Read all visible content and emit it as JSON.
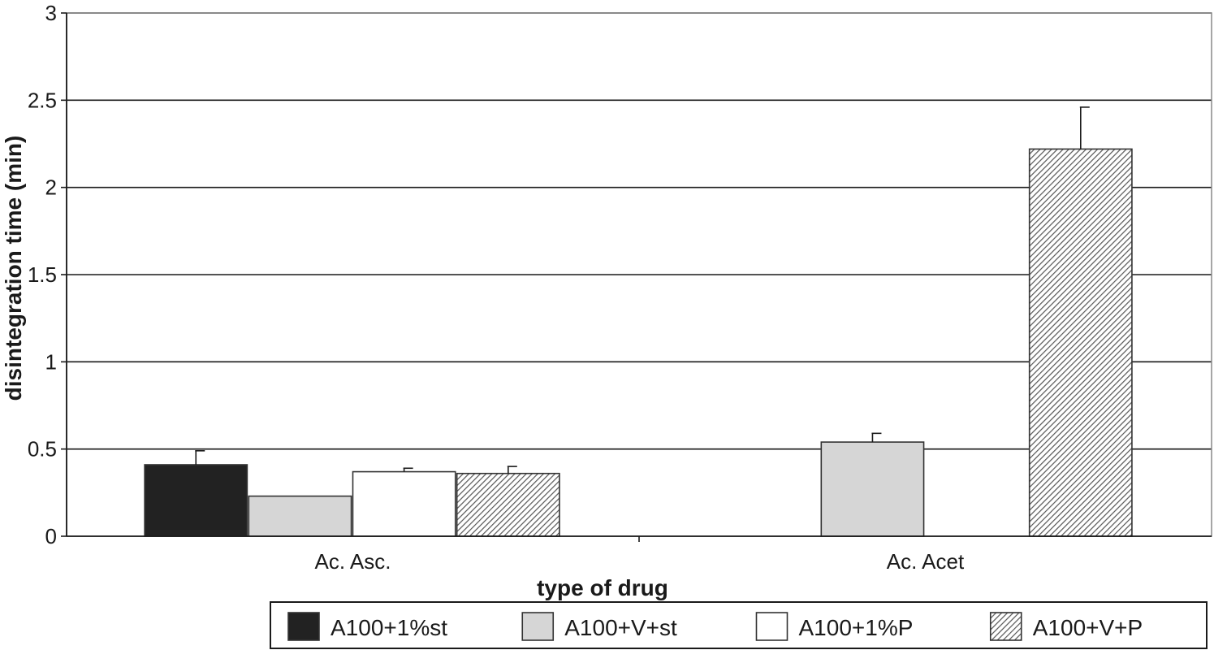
{
  "chart_data": {
    "type": "bar",
    "title": "",
    "xlabel": "type of drug",
    "ylabel": "disintegration time (min)",
    "ylim": [
      0,
      3
    ],
    "yticks": [
      "0",
      "0.5",
      "1",
      "1.5",
      "2",
      "2.5",
      "3"
    ],
    "grid": true,
    "legend_position": "bottom",
    "categories": [
      "Ac. Asc.",
      "Ac. Acet"
    ],
    "series": [
      {
        "name": "A100+1%st",
        "values": [
          0.41,
          null
        ],
        "errors": [
          0.08,
          null
        ],
        "fill": "solid",
        "color": "#222222"
      },
      {
        "name": "A100+V+st",
        "values": [
          0.23,
          0.54
        ],
        "errors": [
          0,
          0.05
        ],
        "fill": "solid",
        "color": "#d6d6d6"
      },
      {
        "name": "A100+1%P",
        "values": [
          0.37,
          null
        ],
        "errors": [
          0.02,
          null
        ],
        "fill": "solid",
        "color": "#ffffff"
      },
      {
        "name": "A100+V+P",
        "values": [
          0.36,
          2.22
        ],
        "errors": [
          0.04,
          0.24
        ],
        "fill": "hatch",
        "color": "#bbbbbb"
      }
    ]
  }
}
